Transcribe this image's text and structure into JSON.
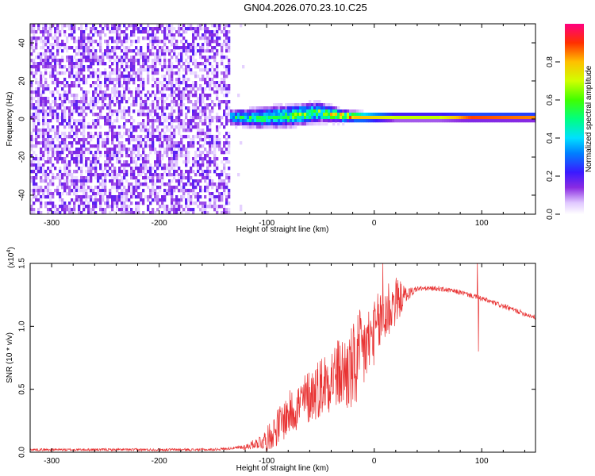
{
  "title": "GN04.2026.070.23.10.C25",
  "chart_data": [
    {
      "type": "heatmap",
      "xlabel": "Height of straight line (km)",
      "ylabel": "Frequency (Hz)",
      "xlim": [
        -320,
        150
      ],
      "ylim": [
        -50,
        50
      ],
      "xticks": [
        -300,
        -200,
        -100,
        0,
        100
      ],
      "xtick_labels": [
        "-300",
        "-200",
        "-100",
        "0",
        "100"
      ],
      "yticks": [
        -40,
        -20,
        0,
        20,
        40
      ],
      "ytick_labels": [
        "-40",
        "-20",
        "0",
        "20",
        "40"
      ],
      "colorbar": {
        "label": "Normalized spectral amplitude",
        "range": [
          0,
          1
        ],
        "ticks": [
          0.0,
          0.2,
          0.4,
          0.6,
          0.8
        ],
        "tick_labels": [
          "0.0",
          "0.2",
          "0.4",
          "0.6",
          "0.8"
        ]
      },
      "noise_region": {
        "x_start": -320,
        "x_end": -135,
        "freq_range": [
          -50,
          50
        ],
        "amplitude": 0.15
      },
      "signal_ridge": [
        {
          "x": -135,
          "freq": 1.0,
          "width": 3.0,
          "amp": 0.45
        },
        {
          "x": -110,
          "freq": 0.5,
          "width": 4.0,
          "amp": 0.55
        },
        {
          "x": -80,
          "freq": 1.5,
          "width": 4.5,
          "amp": 0.6
        },
        {
          "x": -50,
          "freq": 3.5,
          "width": 4.0,
          "amp": 0.65
        },
        {
          "x": -30,
          "freq": 1.5,
          "width": 2.5,
          "amp": 0.85
        },
        {
          "x": -10,
          "freq": 1.0,
          "width": 2.0,
          "amp": 0.8
        },
        {
          "x": 20,
          "freq": 1.0,
          "width": 1.5,
          "amp": 0.7
        },
        {
          "x": 60,
          "freq": 1.0,
          "width": 1.5,
          "amp": 0.7
        },
        {
          "x": 90,
          "freq": 1.0,
          "width": 1.5,
          "amp": 0.9
        },
        {
          "x": 150,
          "freq": 1.0,
          "width": 1.5,
          "amp": 0.85
        }
      ]
    },
    {
      "type": "line",
      "xlabel": "Height of straight line (km)",
      "ylabel": "SNR (10 * v/v)",
      "yscale_label": "(x10",
      "yscale_exp": "4",
      "yscale_close": ")",
      "xlim": [
        -320,
        150
      ],
      "ylim": [
        0,
        1.5
      ],
      "xticks": [
        -300,
        -200,
        -100,
        0,
        100
      ],
      "xtick_labels": [
        "-300",
        "-200",
        "-100",
        "0",
        "100"
      ],
      "yticks": [
        0.0,
        0.5,
        1.0,
        1.5
      ],
      "ytick_labels": [
        "0.0",
        "0.5",
        "1.0",
        "1.5"
      ],
      "color": "#e83232",
      "envelope": {
        "x": [
          -320,
          -150,
          -120,
          -100,
          -80,
          -60,
          -40,
          -20,
          -10,
          0,
          10,
          20,
          40,
          60,
          80,
          100,
          120,
          150
        ],
        "y": [
          0.02,
          0.02,
          0.04,
          0.1,
          0.3,
          0.45,
          0.6,
          0.65,
          0.8,
          0.95,
          1.1,
          1.2,
          1.3,
          1.3,
          1.27,
          1.22,
          1.16,
          1.07
        ]
      },
      "noise_amplitude": {
        "x": [
          -320,
          -130,
          -110,
          -90,
          -70,
          -50,
          -30,
          -15,
          0,
          10,
          20,
          30,
          40,
          150
        ],
        "y": [
          0.01,
          0.01,
          0.04,
          0.15,
          0.2,
          0.25,
          0.3,
          0.4,
          0.25,
          0.3,
          0.2,
          0.06,
          0.02,
          0.02
        ]
      },
      "spikes": [
        {
          "x": 8,
          "y": 1.52
        },
        {
          "x": 96,
          "y": 1.52
        },
        {
          "x": 97,
          "y": 0.8
        }
      ]
    }
  ]
}
